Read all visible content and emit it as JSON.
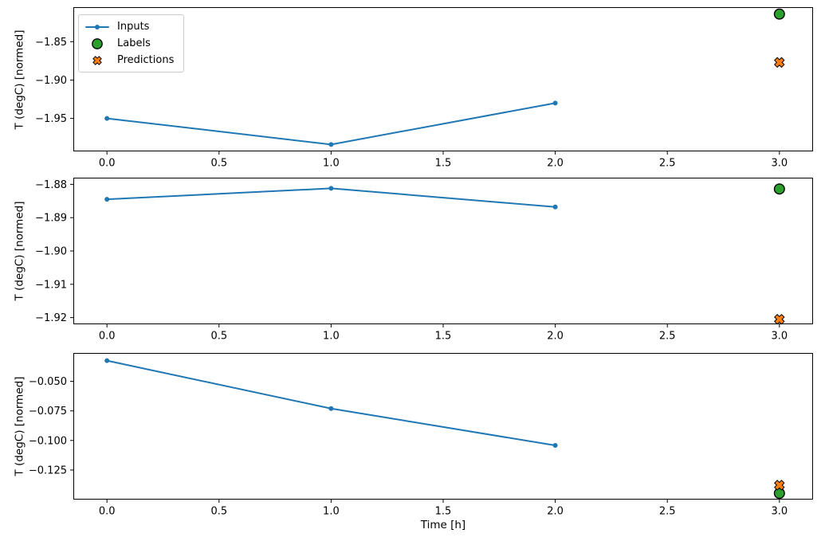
{
  "figure": {
    "background": "#ffffff"
  },
  "colors": {
    "inputs": "#1f77b4",
    "labels": "#2ca02c",
    "predictions": "#ff7f0e",
    "marker_edge": "#000000",
    "axes": "#000000",
    "legend_border": "#cccccc"
  },
  "legend": {
    "position": "upper-left",
    "entries": [
      "Inputs",
      "Labels",
      "Predictions"
    ]
  },
  "chart_data": [
    {
      "type": "line+scatter",
      "title": "",
      "xlabel": "",
      "ylabel": "T (degC) [normed]",
      "grid": false,
      "xlim": [
        -0.15,
        3.15
      ],
      "ylim": [
        -1.993,
        -1.805
      ],
      "xticks": [
        0.0,
        0.5,
        1.0,
        1.5,
        2.0,
        2.5,
        3.0
      ],
      "xtick_labels": [
        "0.0",
        "0.5",
        "1.0",
        "1.5",
        "2.0",
        "2.5",
        "3.0"
      ],
      "yticks": [
        -1.85,
        -1.9,
        -1.95
      ],
      "ytick_labels": [
        "−1.85",
        "−1.90",
        "−1.95"
      ],
      "series": [
        {
          "name": "Inputs",
          "kind": "line+marker",
          "color_key": "inputs",
          "x": [
            0,
            1,
            2
          ],
          "y": [
            -1.95,
            -1.984,
            -1.93
          ]
        },
        {
          "name": "Labels",
          "kind": "circle-marker",
          "color_key": "labels",
          "x": [
            3
          ],
          "y": [
            -1.814
          ]
        },
        {
          "name": "Predictions",
          "kind": "x-marker",
          "color_key": "predictions",
          "x": [
            3
          ],
          "y": [
            -1.877
          ]
        }
      ]
    },
    {
      "type": "line+scatter",
      "title": "",
      "xlabel": "",
      "ylabel": "T (degC) [normed]",
      "grid": false,
      "xlim": [
        -0.15,
        3.15
      ],
      "ylim": [
        -1.922,
        -1.878
      ],
      "xticks": [
        0.0,
        0.5,
        1.0,
        1.5,
        2.0,
        2.5,
        3.0
      ],
      "xtick_labels": [
        "0.0",
        "0.5",
        "1.0",
        "1.5",
        "2.0",
        "2.5",
        "3.0"
      ],
      "yticks": [
        -1.88,
        -1.89,
        -1.9,
        -1.91,
        -1.92
      ],
      "ytick_labels": [
        "−1.88",
        "−1.89",
        "−1.90",
        "−1.91",
        "−1.92"
      ],
      "series": [
        {
          "name": "Inputs",
          "kind": "line+marker",
          "color_key": "inputs",
          "x": [
            0,
            1,
            2
          ],
          "y": [
            -1.8845,
            -1.8812,
            -1.8868
          ]
        },
        {
          "name": "Labels",
          "kind": "circle-marker",
          "color_key": "labels",
          "x": [
            3
          ],
          "y": [
            -1.8814
          ]
        },
        {
          "name": "Predictions",
          "kind": "x-marker",
          "color_key": "predictions",
          "x": [
            3
          ],
          "y": [
            -1.9205
          ]
        }
      ]
    },
    {
      "type": "line+scatter",
      "title": "",
      "xlabel": "Time [h]",
      "ylabel": "T (degC) [normed]",
      "grid": false,
      "xlim": [
        -0.15,
        3.15
      ],
      "ylim": [
        -0.15,
        -0.026
      ],
      "xticks": [
        0.0,
        0.5,
        1.0,
        1.5,
        2.0,
        2.5,
        3.0
      ],
      "xtick_labels": [
        "0.0",
        "0.5",
        "1.0",
        "1.5",
        "2.0",
        "2.5",
        "3.0"
      ],
      "yticks": [
        -0.05,
        -0.075,
        -0.1,
        -0.125
      ],
      "ytick_labels": [
        "−0.050",
        "−0.075",
        "−0.100",
        "−0.125"
      ],
      "series": [
        {
          "name": "Inputs",
          "kind": "line+marker",
          "color_key": "inputs",
          "x": [
            0,
            1,
            2
          ],
          "y": [
            -0.0325,
            -0.073,
            -0.1042
          ]
        },
        {
          "name": "Labels",
          "kind": "circle-marker",
          "color_key": "labels",
          "x": [
            3
          ],
          "y": [
            -0.1447
          ]
        },
        {
          "name": "Predictions",
          "kind": "x-marker",
          "color_key": "predictions",
          "x": [
            3
          ],
          "y": [
            -0.1378
          ]
        }
      ]
    }
  ]
}
